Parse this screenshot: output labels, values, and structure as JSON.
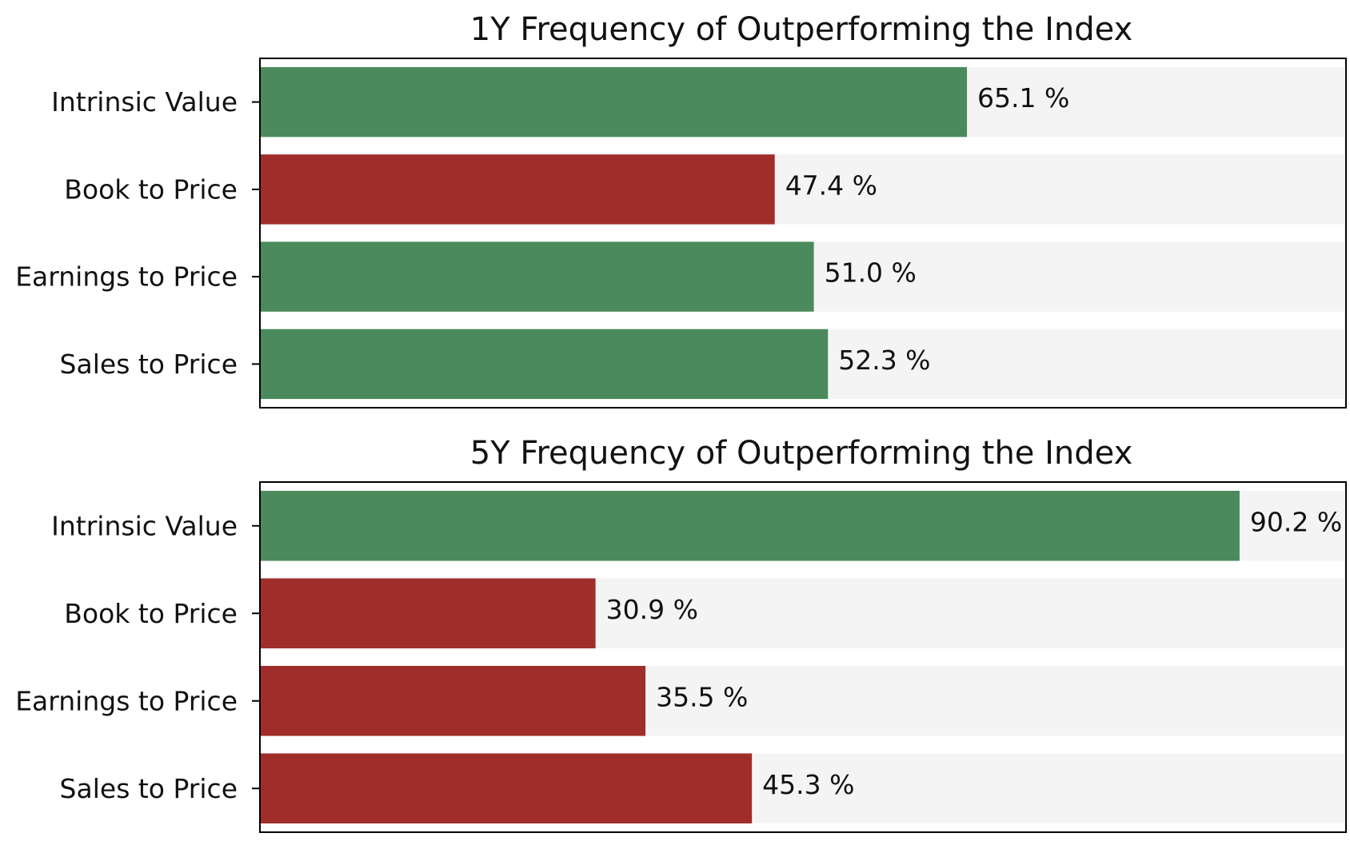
{
  "colors": {
    "above": "#4a8a5c",
    "below": "#a12d2b",
    "track": "#f4f4f4",
    "frame": "#000000",
    "text": "#111111"
  },
  "chart_data": [
    {
      "type": "bar",
      "orientation": "horizontal",
      "title": "1Y Frequency of Outperforming the Index",
      "categories": [
        "Intrinsic Value",
        "Book to Price",
        "Earnings to Price",
        "Sales to Price"
      ],
      "values": [
        65.1,
        47.4,
        51.0,
        52.3
      ],
      "value_labels": [
        "65.1 %",
        "47.4 %",
        "51.0 %",
        "52.3 %"
      ],
      "bar_colors": [
        "above",
        "below",
        "above",
        "above"
      ],
      "xlim": [
        0,
        100
      ],
      "xlabel": "",
      "ylabel": "",
      "grid": false,
      "xticks_visible": false
    },
    {
      "type": "bar",
      "orientation": "horizontal",
      "title": "5Y Frequency of Outperforming the Index",
      "categories": [
        "Intrinsic Value",
        "Book to Price",
        "Earnings to Price",
        "Sales to Price"
      ],
      "values": [
        90.2,
        30.9,
        35.5,
        45.3
      ],
      "value_labels": [
        "90.2 %",
        "30.9 %",
        "35.5 %",
        "45.3 %"
      ],
      "bar_colors": [
        "above",
        "below",
        "below",
        "below"
      ],
      "xlim": [
        0,
        100
      ],
      "xlabel": "",
      "ylabel": "",
      "grid": false,
      "xticks_visible": false
    }
  ]
}
